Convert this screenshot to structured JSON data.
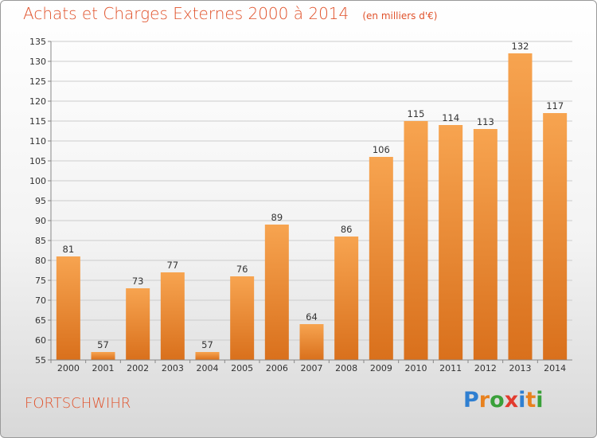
{
  "title": "Achats et Charges Externes 2000 à 2014",
  "subtitle": "(en milliers d'€)",
  "city": "FORTSCHWIHR",
  "logo": {
    "text": "Proxiti",
    "letters": [
      "P",
      "r",
      "o",
      "x",
      "i",
      "t",
      "i"
    ],
    "colors": [
      "#2f7fd1",
      "#e8811e",
      "#3aa03a",
      "#e23b2e",
      "#2f7fd1",
      "#e8811e",
      "#3aa03a"
    ]
  },
  "colors": {
    "bar_light": "#f7a450",
    "bar_dark": "#d9701c",
    "grid": "#cccccc",
    "axis": "#888888"
  },
  "chart_data": {
    "type": "bar",
    "categories": [
      "2000",
      "2001",
      "2002",
      "2003",
      "2004",
      "2005",
      "2006",
      "2007",
      "2008",
      "2009",
      "2010",
      "2011",
      "2012",
      "2013",
      "2014"
    ],
    "values": [
      81,
      57,
      73,
      77,
      57,
      76,
      89,
      64,
      86,
      106,
      115,
      114,
      113,
      132,
      117
    ],
    "ylim": [
      55,
      135
    ],
    "yticks": [
      55,
      60,
      65,
      70,
      75,
      80,
      85,
      90,
      95,
      100,
      105,
      110,
      115,
      120,
      125,
      130,
      135
    ],
    "grid": true,
    "data_labels": true
  }
}
